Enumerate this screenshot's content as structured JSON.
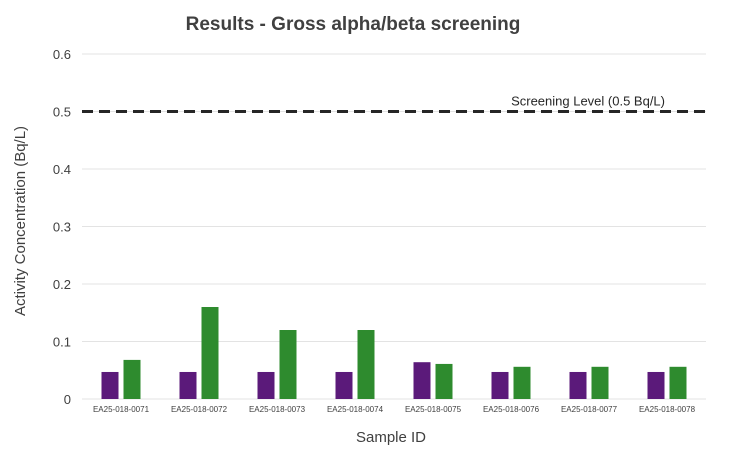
{
  "chart_data": {
    "type": "bar",
    "title": "Results - Gross alpha/beta screening",
    "xlabel": "Sample ID",
    "ylabel": "Activity Concentration (Bq/L)",
    "ylim": [
      0,
      0.6
    ],
    "yticks": [
      "0",
      "0.1",
      "0.2",
      "0.3",
      "0.4",
      "0.5",
      "0.6"
    ],
    "ytick_values": [
      0,
      0.1,
      0.2,
      0.3,
      0.4,
      0.5,
      0.6
    ],
    "grid": true,
    "categories": [
      "EA25-018-0071",
      "EA25-018-0072",
      "EA25-018-0073",
      "EA25-018-0074",
      "EA25-018-0075",
      "EA25-018-0076",
      "EA25-018-0077",
      "EA25-018-0078"
    ],
    "series": [
      {
        "color": "#5b1a7a",
        "values": [
          0.047,
          0.047,
          0.047,
          0.047,
          0.064,
          0.047,
          0.047,
          0.047
        ]
      },
      {
        "color": "#2e8b2e",
        "values": [
          0.068,
          0.16,
          0.12,
          0.12,
          0.061,
          0.056,
          0.056,
          0.056
        ]
      }
    ],
    "reference_line": {
      "label": "Screening Level (0.5 Bq/L)",
      "value": 0.5,
      "style": "dashed",
      "color": "#262626"
    }
  }
}
